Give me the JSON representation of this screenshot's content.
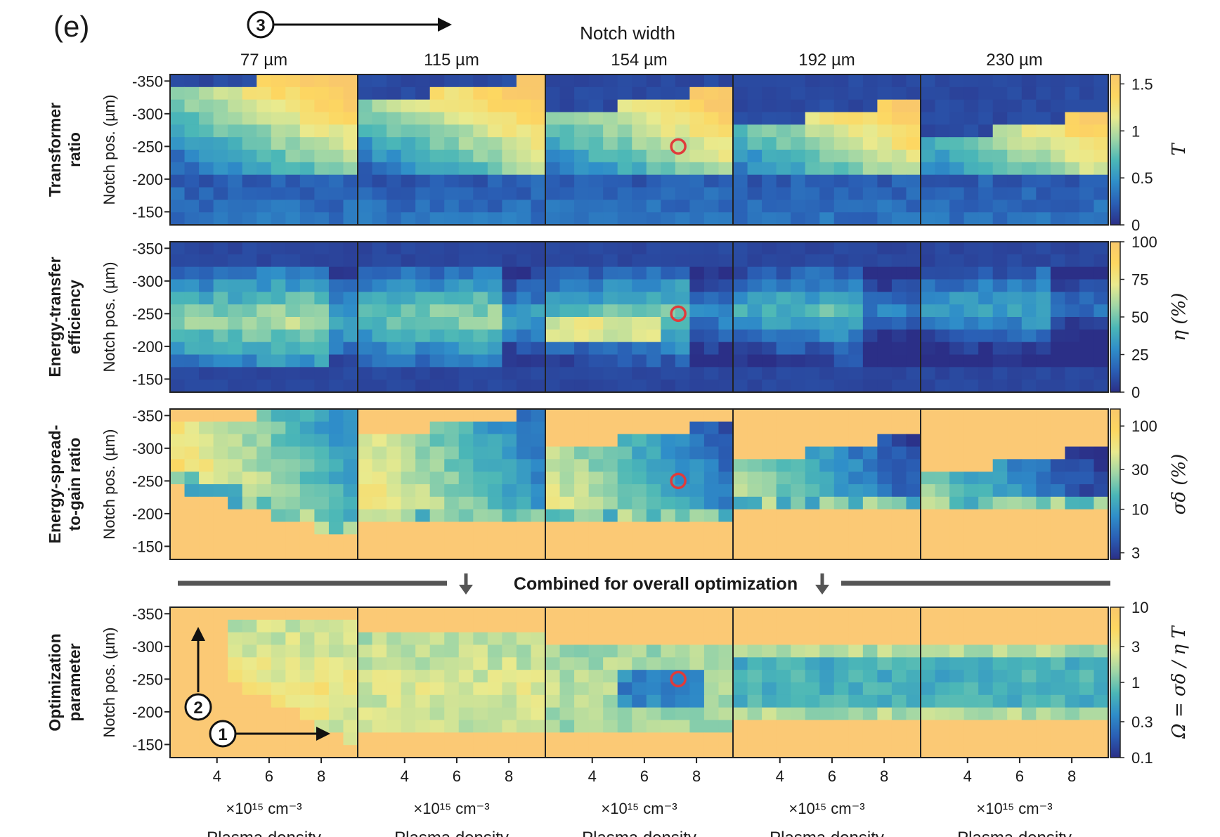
{
  "figure": {
    "panel_label": "(e)",
    "notch_width_label": "Notch width",
    "step_3": "3",
    "step_2": "2",
    "step_1": "1",
    "combined_label": "Combined for overall optimization"
  },
  "chart_data": {
    "type": "heatmap",
    "columns": [
      "77 µm",
      "115 µm",
      "154 µm",
      "192 µm",
      "230 µm"
    ],
    "rows": [
      {
        "label_line1": "Transformer",
        "label_line2": "ratio",
        "cbar_label": "T",
        "cbar_ticks": [
          "0",
          "0.5",
          "1",
          "1.5"
        ],
        "cbar_range": [
          0,
          1.6
        ],
        "cbar_scale": "linear"
      },
      {
        "label_line1": "Energy-transfer",
        "label_line2": "efficiency",
        "cbar_label": "η (%)",
        "cbar_ticks": [
          "0",
          "25",
          "50",
          "75",
          "100"
        ],
        "cbar_range": [
          0,
          100
        ],
        "cbar_scale": "linear"
      },
      {
        "label_line1": "Energy-spread-",
        "label_line2": "to-gain ratio",
        "cbar_label": "σδ (%)",
        "cbar_ticks": [
          "3",
          "10",
          "30",
          "100"
        ],
        "cbar_range": [
          2.5,
          160
        ],
        "cbar_scale": "log"
      },
      {
        "label_line1": "Optimization",
        "label_line2": "parameter",
        "cbar_label": "Ω = σδ / η T",
        "cbar_ticks": [
          "0.1",
          "0.3",
          "1",
          "3",
          "10"
        ],
        "cbar_range": [
          0.1,
          10
        ],
        "cbar_scale": "log"
      }
    ],
    "ylabel": "Notch pos. (µm)",
    "yticks": [
      "-350",
      "-300",
      "-250",
      "-200",
      "-150"
    ],
    "ylim": [
      -360,
      -130
    ],
    "xlabel": "Plasma density",
    "xunit": "×10¹⁵ cm⁻³",
    "xticks": [
      "4",
      "6",
      "8"
    ],
    "xlim": [
      2.2,
      9.4
    ],
    "optimum_marker": {
      "column": "154 µm",
      "plasma_density": 7.3,
      "notch_pos": -250
    },
    "colormap": [
      "#2b2f87",
      "#2a5fb5",
      "#2f8ec9",
      "#4bb7b7",
      "#9fd6a6",
      "#e9ea8e",
      "#fdd761",
      "#f9c86b"
    ],
    "undefined_color": "#fbc975",
    "marker_color": "#e03b3b"
  }
}
